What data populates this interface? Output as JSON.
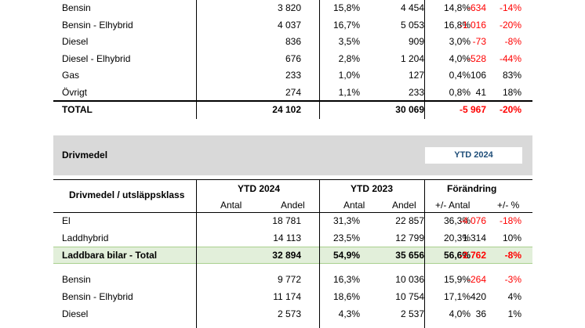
{
  "top_rows": [
    {
      "name": "Bensin",
      "a2024": "3 820",
      "s2024": "15,8%",
      "a2023": "4 454",
      "s2023": "14,8%",
      "diff": "-634",
      "pct": "-14%",
      "diff_neg": true,
      "pct_neg": true
    },
    {
      "name": "Bensin - Elhybrid",
      "a2024": "4 037",
      "s2024": "16,7%",
      "a2023": "5 053",
      "s2023": "16,8%",
      "diff": "-1 016",
      "pct": "-20%",
      "diff_neg": true,
      "pct_neg": true
    },
    {
      "name": "Diesel",
      "a2024": "836",
      "s2024": "3,5%",
      "a2023": "909",
      "s2023": "3,0%",
      "diff": "-73",
      "pct": "-8%",
      "diff_neg": true,
      "pct_neg": true
    },
    {
      "name": "Diesel - Elhybrid",
      "a2024": "676",
      "s2024": "2,8%",
      "a2023": "1 204",
      "s2023": "4,0%",
      "diff": "-528",
      "pct": "-44%",
      "diff_neg": true,
      "pct_neg": true
    },
    {
      "name": "Gas",
      "a2024": "233",
      "s2024": "1,0%",
      "a2023": "127",
      "s2023": "0,4%",
      "diff": "106",
      "pct": "83%",
      "diff_neg": false,
      "pct_neg": false
    },
    {
      "name": "Övrigt",
      "a2024": "274",
      "s2024": "1,1%",
      "a2023": "233",
      "s2023": "0,8%",
      "diff": "41",
      "pct": "18%",
      "diff_neg": false,
      "pct_neg": false
    }
  ],
  "total": {
    "name": "TOTAL",
    "a2024": "24 102",
    "a2023": "30 069",
    "diff": "-5 967",
    "pct": "-20%"
  },
  "section": {
    "title": "Drivmedel",
    "period_selector": "YTD 2024"
  },
  "header": {
    "class_label": "Drivmedel / utsläppsklass",
    "ytd2024": "YTD 2024",
    "ytd2023": "YTD 2023",
    "change": "Förändring",
    "antal": "Antal",
    "andel": "Andel",
    "antal2": "Antal",
    "andel2": "Andel",
    "diff": "+/- Antal",
    "pct": "+/- %"
  },
  "bottom_rows": [
    {
      "name": "El",
      "a2024": "18 781",
      "s2024": "31,3%",
      "a2023": "22 857",
      "s2023": "36,3%",
      "diff": "-4 076",
      "pct": "-18%",
      "diff_neg": true,
      "pct_neg": true
    },
    {
      "name": "Laddhybrid",
      "a2024": "14 113",
      "s2024": "23,5%",
      "a2023": "12 799",
      "s2023": "20,3%",
      "diff": "1 314",
      "pct": "10%",
      "diff_neg": false,
      "pct_neg": false
    }
  ],
  "subtotal": {
    "name": "Laddbara bilar - Total",
    "a2024": "32 894",
    "s2024": "54,9%",
    "a2023": "35 656",
    "s2023": "56,6%",
    "diff": "-2 762",
    "pct": "-8%"
  },
  "bottom_rows2": [
    {
      "name": "Bensin",
      "a2024": "9 772",
      "s2024": "16,3%",
      "a2023": "10 036",
      "s2023": "15,9%",
      "diff": "-264",
      "pct": "-3%",
      "diff_neg": true,
      "pct_neg": true
    },
    {
      "name": "Bensin - Elhybrid",
      "a2024": "11 174",
      "s2024": "18,6%",
      "a2023": "10 754",
      "s2023": "17,1%",
      "diff": "420",
      "pct": "4%",
      "diff_neg": false,
      "pct_neg": false
    },
    {
      "name": "Diesel",
      "a2024": "2 573",
      "s2024": "4,3%",
      "a2023": "2 537",
      "s2023": "4,0%",
      "diff": "36",
      "pct": "1%",
      "diff_neg": false,
      "pct_neg": false
    }
  ],
  "colors": {
    "negative": "#ff0000",
    "band": "#d9d9d9",
    "highlight": "#e2efda",
    "selector_text": "#1f4e79"
  }
}
